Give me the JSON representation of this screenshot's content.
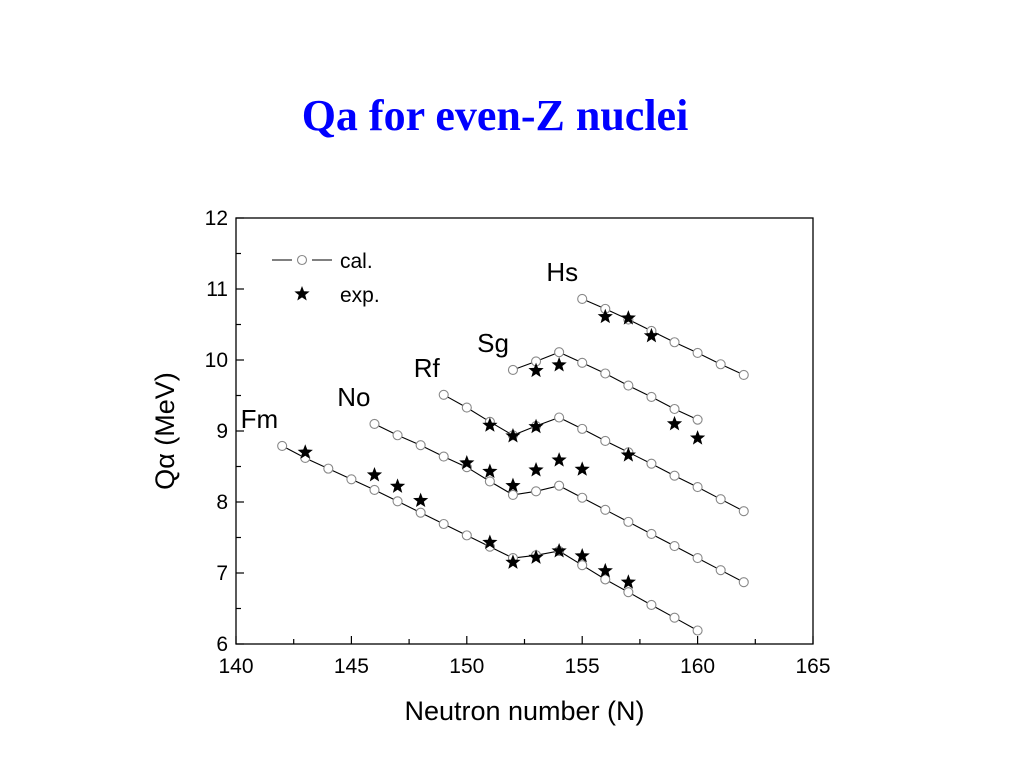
{
  "slide": {
    "title": "Qa for even-Z  nuclei"
  },
  "chart_data": {
    "type": "scatter",
    "xlabel": "Neutron number (N)",
    "ylabel": "Qα (MeV)",
    "xlim": [
      140,
      165
    ],
    "ylim": [
      6,
      12
    ],
    "xticks": [
      140,
      145,
      150,
      155,
      160,
      165
    ],
    "yticks": [
      6,
      7,
      8,
      9,
      10,
      11,
      12
    ],
    "grid": false,
    "legend": {
      "position": "top-left",
      "entries": [
        {
          "label": "cal.",
          "marker": "open-circle-line"
        },
        {
          "label": "exp.",
          "marker": "filled-star"
        }
      ]
    },
    "series": [
      {
        "name": "Fm",
        "calculated": {
          "x": [
            142,
            143,
            144,
            145,
            146,
            147,
            148,
            149,
            150,
            151,
            152,
            153,
            154,
            155,
            156,
            157,
            158,
            159,
            160
          ],
          "y": [
            8.79,
            8.62,
            8.47,
            8.32,
            8.17,
            8.01,
            7.85,
            7.69,
            7.53,
            7.37,
            7.21,
            7.25,
            7.31,
            7.11,
            6.91,
            6.73,
            6.55,
            6.37,
            6.19
          ]
        },
        "experimental": {
          "x": [
            143,
            151,
            152,
            153,
            154,
            155,
            156,
            157
          ],
          "y": [
            8.7,
            7.43,
            7.15,
            7.22,
            7.31,
            7.24,
            7.03,
            6.87
          ]
        }
      },
      {
        "name": "No",
        "calculated": {
          "x": [
            146,
            147,
            148,
            149,
            150,
            151,
            152,
            153,
            154,
            155,
            156,
            157,
            158,
            159,
            160,
            161,
            162
          ],
          "y": [
            9.1,
            8.94,
            8.8,
            8.64,
            8.49,
            8.29,
            8.1,
            8.15,
            8.23,
            8.06,
            7.89,
            7.72,
            7.55,
            7.38,
            7.21,
            7.04,
            6.87
          ]
        },
        "experimental": {
          "x": [
            146,
            147,
            148,
            150,
            151,
            152,
            153,
            154,
            155
          ],
          "y": [
            8.38,
            8.22,
            8.02,
            8.55,
            8.43,
            8.23,
            8.45,
            8.59,
            8.46
          ]
        }
      },
      {
        "name": "Rf",
        "calculated": {
          "x": [
            149,
            150,
            151,
            152,
            153,
            154,
            155,
            156,
            157,
            158,
            159,
            160,
            161,
            162
          ],
          "y": [
            9.51,
            9.33,
            9.13,
            8.94,
            9.07,
            9.19,
            9.03,
            8.86,
            8.7,
            8.54,
            8.37,
            8.21,
            8.04,
            7.87
          ]
        },
        "experimental": {
          "x": [
            151,
            152,
            153,
            157
          ],
          "y": [
            9.08,
            8.93,
            9.06,
            8.66
          ]
        }
      },
      {
        "name": "Sg",
        "calculated": {
          "x": [
            152,
            153,
            154,
            155,
            156,
            157,
            158,
            159,
            160
          ],
          "y": [
            9.86,
            9.98,
            10.11,
            9.96,
            9.81,
            9.64,
            9.48,
            9.31,
            9.16
          ]
        },
        "experimental": {
          "x": [
            153,
            154,
            159,
            160
          ],
          "y": [
            9.85,
            9.93,
            9.1,
            8.9
          ]
        }
      },
      {
        "name": "Hs",
        "calculated": {
          "x": [
            155,
            156,
            157,
            158,
            159,
            160,
            161,
            162
          ],
          "y": [
            10.86,
            10.72,
            10.57,
            10.41,
            10.25,
            10.1,
            9.94,
            9.79
          ]
        },
        "experimental": {
          "x": [
            156,
            157,
            158
          ],
          "y": [
            10.61,
            10.59,
            10.34
          ]
        }
      }
    ]
  }
}
